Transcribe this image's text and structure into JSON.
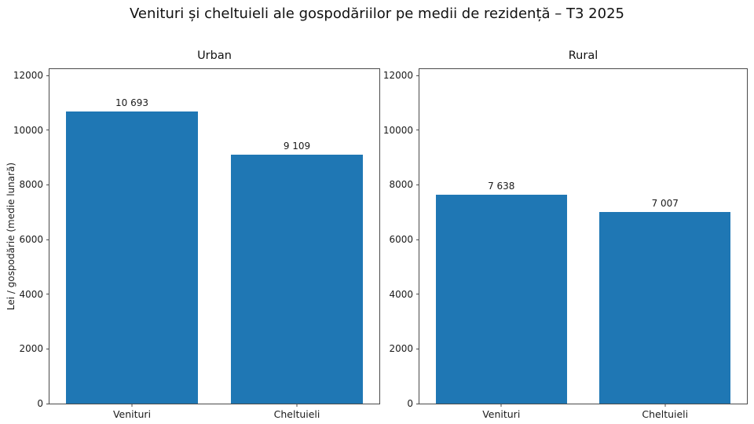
{
  "figure": {
    "title": "Venituri și cheltuieli ale gospodăriilor pe medii de rezidență – T3 2025",
    "ylabel": "Lei / gospodărie (medie lunară)"
  },
  "chart_data": [
    {
      "type": "bar",
      "title": "Urban",
      "categories": [
        "Venituri",
        "Cheltuieli"
      ],
      "values": [
        10693,
        9109
      ],
      "value_labels": [
        "10 693",
        "9 109"
      ],
      "xlabel": "",
      "ylabel": "Lei / gospodărie (medie lunară)",
      "ylim": [
        0,
        12230
      ],
      "xlim": [
        -0.5,
        1.5
      ],
      "yticks": [
        0,
        2000,
        4000,
        6000,
        8000,
        10000,
        12000
      ],
      "bar_color": "#1f77b4",
      "bar_width_fraction": 0.4,
      "grid": false,
      "legend": "none"
    },
    {
      "type": "bar",
      "title": "Rural",
      "categories": [
        "Venituri",
        "Cheltuieli"
      ],
      "values": [
        7638,
        7007
      ],
      "value_labels": [
        "7 638",
        "7 007"
      ],
      "xlabel": "",
      "ylabel": "",
      "ylim": [
        0,
        12230
      ],
      "xlim": [
        -0.5,
        1.5
      ],
      "yticks": [
        0,
        2000,
        4000,
        6000,
        8000,
        10000,
        12000
      ],
      "bar_color": "#1f77b4",
      "bar_width_fraction": 0.4,
      "grid": false,
      "legend": "none"
    }
  ]
}
